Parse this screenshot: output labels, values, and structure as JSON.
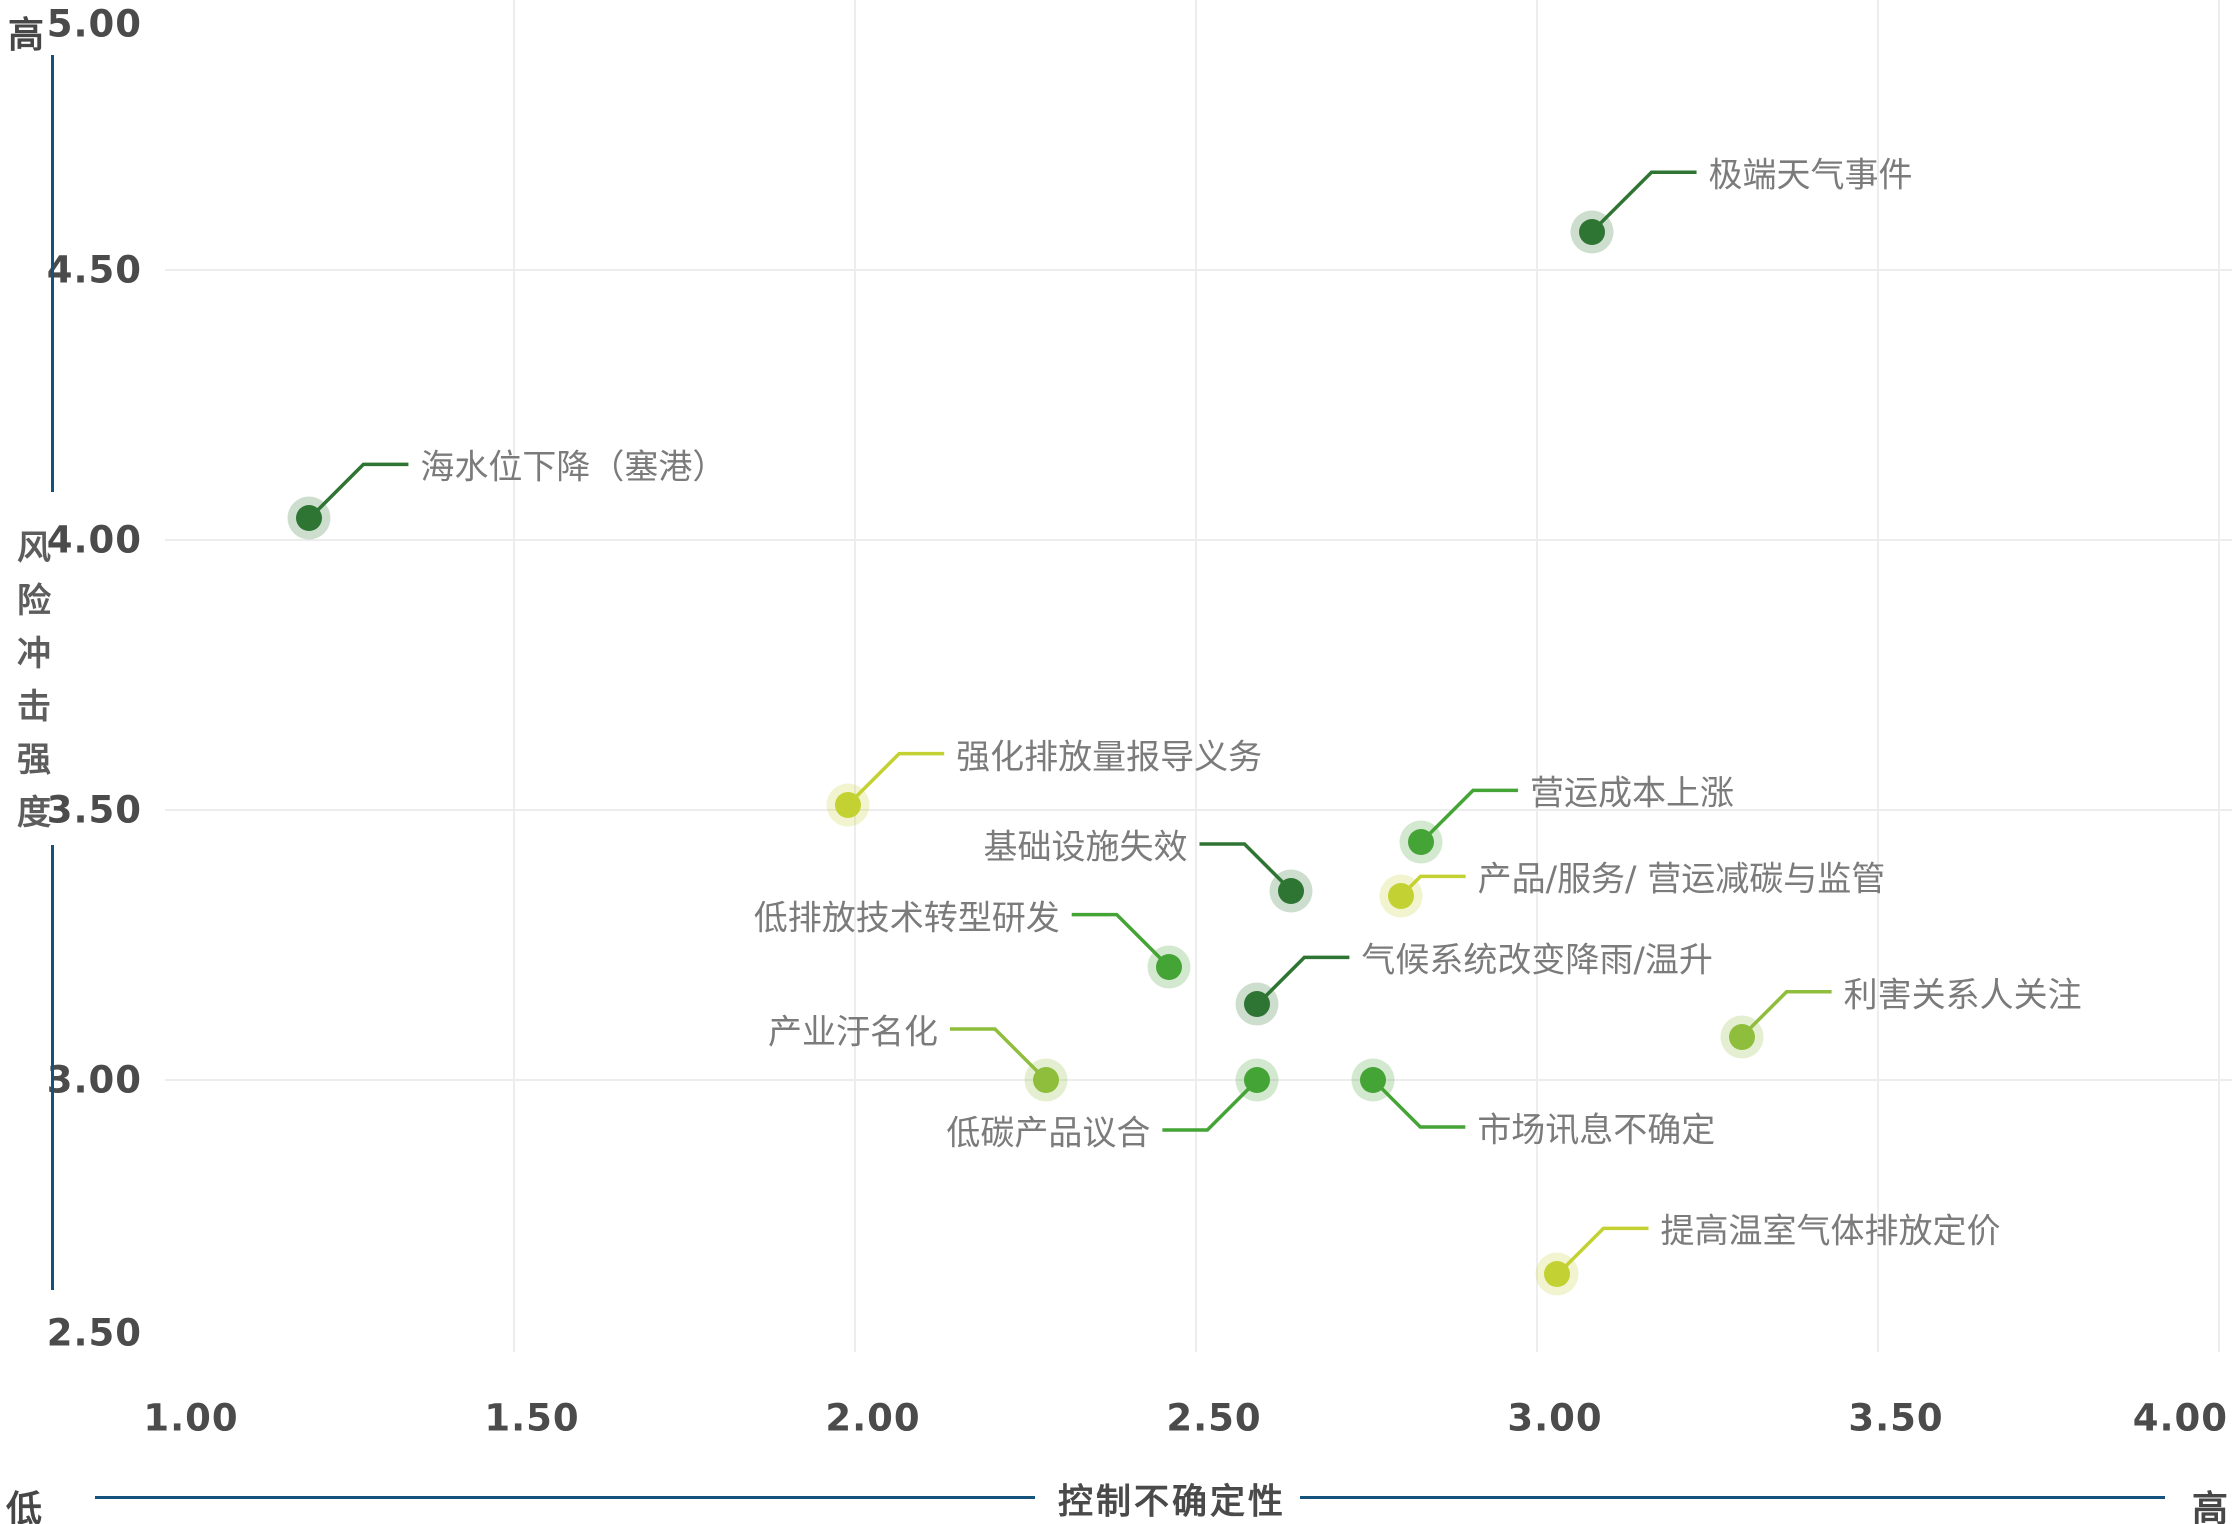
{
  "chart_data": {
    "type": "scatter",
    "title": "",
    "xlabel": "控制不确定性",
    "ylabel": "风险冲击强度",
    "x_axis": {
      "min": 1.0,
      "max": 4.0,
      "ticks": [
        "1.00",
        "1.50",
        "2.00",
        "2.50",
        "3.00",
        "3.50",
        "4.00"
      ],
      "tick_values": [
        1.0,
        1.5,
        2.0,
        2.5,
        3.0,
        3.5,
        4.0
      ],
      "gridline_values": [
        1.5,
        2.0,
        2.5,
        3.0,
        3.5,
        4.0
      ],
      "low_label": "低",
      "high_label": "高"
    },
    "y_axis": {
      "min": 2.5,
      "max": 5.0,
      "ticks": [
        "5.00",
        "4.50",
        "4.00",
        "3.50",
        "3.00",
        "2.50"
      ],
      "tick_values": [
        5.0,
        4.5,
        4.0,
        3.5,
        3.0,
        2.5
      ],
      "gridline_values": [
        4.5,
        4.0,
        3.5,
        3.0
      ],
      "low_label": "低",
      "high_label": "高"
    },
    "grid": true,
    "legend": "none",
    "categories": {
      "dark": "#2e7433",
      "green": "#45a436",
      "apple": "#8fbe3d",
      "yellow": "#c3d232"
    },
    "points": [
      {
        "label": "极端天气事件",
        "x": 3.08,
        "y": 4.57,
        "category": "dark"
      },
      {
        "label": "海水位下降（塞港）",
        "x": 1.2,
        "y": 4.04,
        "category": "dark"
      },
      {
        "label": "强化排放量报导义务",
        "x": 1.99,
        "y": 3.51,
        "category": "yellow"
      },
      {
        "label": "营运成本上涨",
        "x": 2.83,
        "y": 3.44,
        "category": "green"
      },
      {
        "label": "基础设施失效",
        "x": 2.64,
        "y": 3.35,
        "category": "dark"
      },
      {
        "label": "产品/服务/ 营运减碳与监管",
        "x": 2.8,
        "y": 3.34,
        "category": "yellow"
      },
      {
        "label": "低排放技术转型研发",
        "x": 2.46,
        "y": 3.21,
        "category": "green"
      },
      {
        "label": "气候系统改变降雨/温升",
        "x": 2.59,
        "y": 3.14,
        "category": "dark"
      },
      {
        "label": "利害关系人关注",
        "x": 3.3,
        "y": 3.08,
        "category": "apple"
      },
      {
        "label": "产业汙名化",
        "x": 2.28,
        "y": 3.0,
        "category": "apple"
      },
      {
        "label": "低碳产品议合",
        "x": 2.59,
        "y": 3.0,
        "category": "green"
      },
      {
        "label": "市场讯息不确定",
        "x": 2.76,
        "y": 3.0,
        "category": "green"
      },
      {
        "label": "提高温室气体排放定价",
        "x": 3.03,
        "y": 2.64,
        "category": "yellow"
      }
    ]
  },
  "colors": {
    "axis_line": "#15537e",
    "grid": "#ededed",
    "tick_label": "#4b4b4b",
    "data_label": "#7b7b7b",
    "axis_title": "#4a4a4a",
    "background": "#ffffff"
  }
}
